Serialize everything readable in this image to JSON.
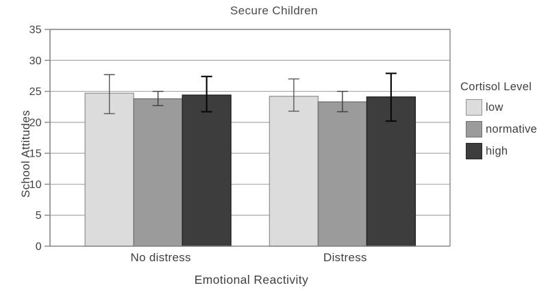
{
  "title": "Secure Children",
  "y_axis": {
    "label": "School Attitudes"
  },
  "x_axis": {
    "label": "Emotional Reactivity"
  },
  "legend": {
    "title": "Cortisol Level",
    "items": [
      {
        "label": "low",
        "color": "#dcdcdc",
        "border": "#909090"
      },
      {
        "label": "normative",
        "color": "#9b9b9b",
        "border": "#6f6f6f"
      },
      {
        "label": "high",
        "color": "#3d3d3d",
        "border": "#242424"
      }
    ]
  },
  "colors": {
    "grid": "#a8a8a8",
    "axis": "#868686",
    "text": "#3f3f3f",
    "background": "#ffffff"
  },
  "chart_data": {
    "type": "bar",
    "title": "Secure Children",
    "xlabel": "Emotional Reactivity",
    "ylabel": "School Attitudes",
    "ylim": [
      0,
      35
    ],
    "yticks": [
      0,
      5,
      10,
      15,
      20,
      25,
      30,
      35
    ],
    "grid": true,
    "legend_title": "Cortisol Level",
    "legend_position": "right",
    "categories": [
      "No distress",
      "Distress"
    ],
    "series": [
      {
        "name": "low",
        "values": [
          24.7,
          24.2
        ],
        "error_low": [
          21.4,
          21.8
        ],
        "error_high": [
          27.7,
          27.0
        ],
        "color": "#dcdcdc",
        "border": "#949494",
        "error_color": "#565656",
        "error_width": 1.4
      },
      {
        "name": "normative",
        "values": [
          23.8,
          23.3
        ],
        "error_low": [
          22.7,
          21.7
        ],
        "error_high": [
          25.0,
          25.0
        ],
        "color": "#9b9b9b",
        "border": "#6f6f6f",
        "error_color": "#3c3c3c",
        "error_width": 1.4
      },
      {
        "name": "high",
        "values": [
          24.4,
          24.1
        ],
        "error_low": [
          21.7,
          20.2
        ],
        "error_high": [
          27.4,
          27.9
        ],
        "color": "#3d3d3d",
        "border": "#1f1f1f",
        "error_color": "#0a0a0a",
        "error_width": 2.2
      }
    ]
  }
}
